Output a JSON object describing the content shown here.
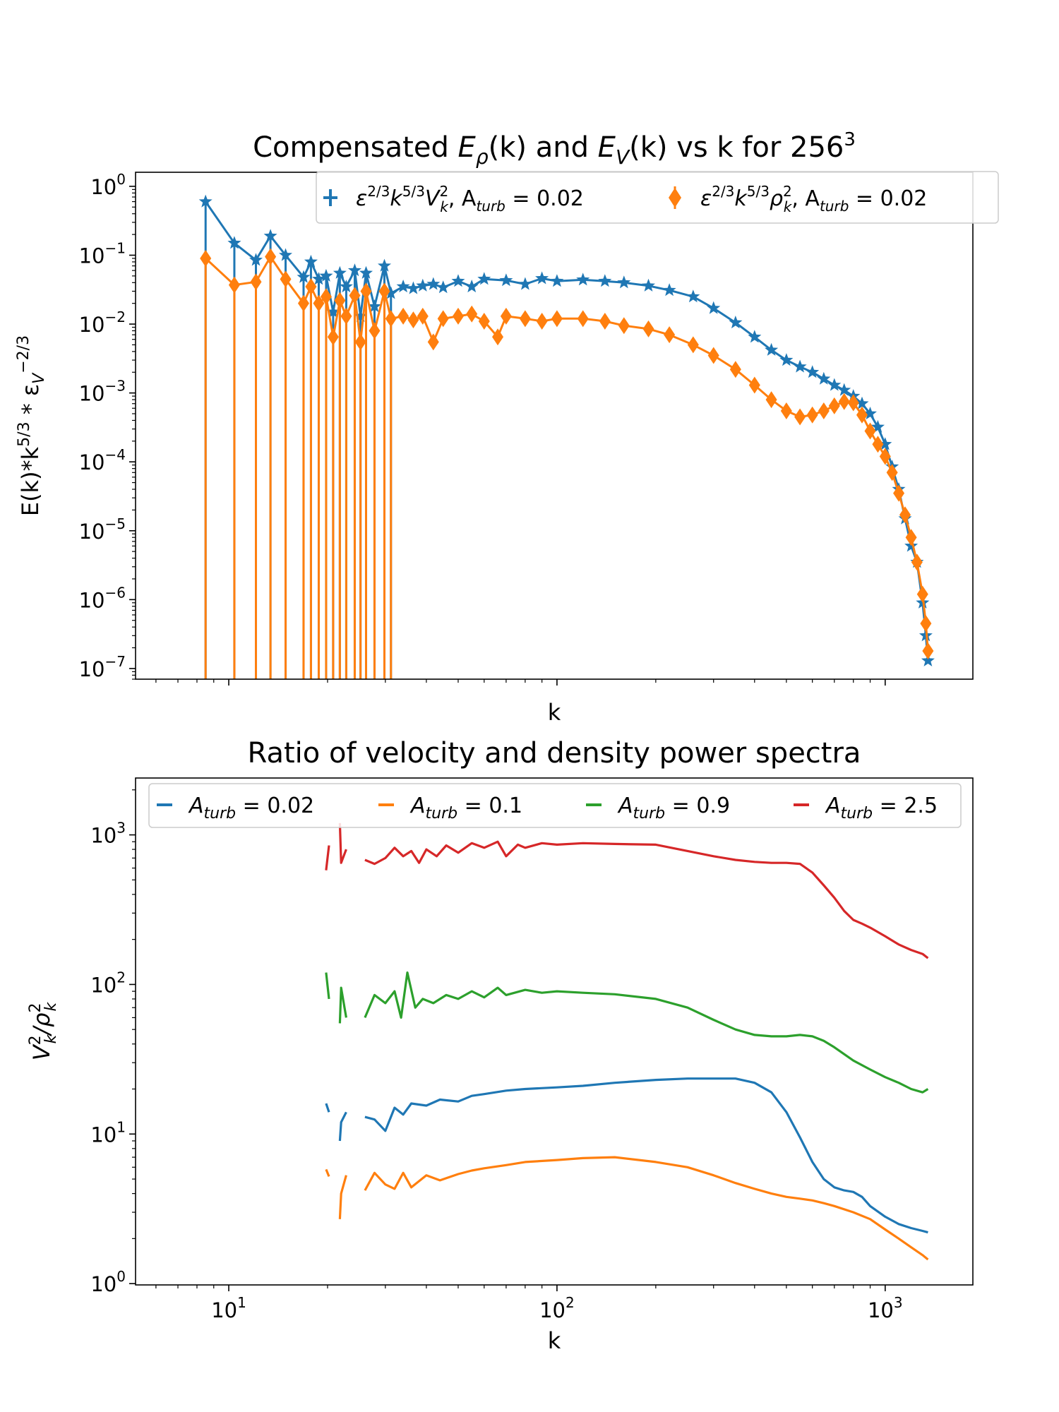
{
  "colors": {
    "blue": "#1f77b4",
    "orange": "#ff7f0e",
    "green": "#2ca02c",
    "red": "#d62728",
    "frame": "#000000"
  },
  "chart_data": [
    {
      "type": "line",
      "title_parts": [
        "Compensated ",
        "E",
        "ρ",
        "(k) and ",
        "E",
        "V",
        "(k) vs k for 256",
        "3"
      ],
      "xlabel": "k",
      "ylabel_parts": [
        "E(k)*k",
        "5/3",
        " * ε",
        "V",
        "−2/3"
      ],
      "xscale": "log",
      "yscale": "log",
      "xlim": [
        5.2,
        1850
      ],
      "ylim": [
        7e-08,
        1.6
      ],
      "x_tick_labels_shown": false,
      "yticks": [
        {
          "base": "10",
          "exp": "0"
        },
        {
          "base": "10",
          "exp": "−1"
        },
        {
          "base": "10",
          "exp": "−2"
        },
        {
          "base": "10",
          "exp": "−3"
        },
        {
          "base": "10",
          "exp": "−4"
        },
        {
          "base": "10",
          "exp": "−5"
        },
        {
          "base": "10",
          "exp": "−6"
        },
        {
          "base": "10",
          "exp": "−7"
        }
      ],
      "ytick_values": [
        1,
        0.1,
        0.01,
        0.001,
        0.0001,
        1e-05,
        1e-06,
        1e-07
      ],
      "legend": [
        {
          "parts": [
            "ε",
            "2/3",
            "k",
            "5/3",
            "V",
            "2",
            "k",
            ", A",
            "turb",
            " = 0.02"
          ],
          "marker": "plus",
          "color": "blue"
        },
        {
          "parts": [
            "ε",
            "2/3",
            "k",
            "5/3",
            "ρ",
            "2",
            "k",
            ", A",
            "turb",
            " = 0.02"
          ],
          "marker": "diamond",
          "color": "orange"
        }
      ],
      "series": [
        {
          "marker": "star",
          "color": "blue",
          "x": [
            8.5,
            10.4,
            12.1,
            13.4,
            14.9,
            16.9,
            17.8,
            18.8,
            19.8,
            20.8,
            21.8,
            22.8,
            24.2,
            25.2,
            26.2,
            27.8,
            29.8,
            31.2,
            34.0,
            36.5,
            39.0,
            42.0,
            45.0,
            50.0,
            55.0,
            60.0,
            70.0,
            80.0,
            90.0,
            100.0,
            120.0,
            140.0,
            160.0,
            190.0,
            220.0,
            260.0,
            300.0,
            350.0,
            400.0,
            450.0,
            500.0,
            550.0,
            600.0,
            650.0,
            700.0,
            750.0,
            800.0,
            850.0,
            900.0,
            950.0,
            1000.0,
            1050.0,
            1100.0,
            1150.0,
            1200.0,
            1250.0,
            1300.0,
            1330.0,
            1350.0
          ],
          "y": [
            0.6,
            0.15,
            0.085,
            0.19,
            0.1,
            0.048,
            0.08,
            0.045,
            0.05,
            0.015,
            0.055,
            0.035,
            0.06,
            0.013,
            0.055,
            0.018,
            0.07,
            0.028,
            0.035,
            0.033,
            0.036,
            0.038,
            0.034,
            0.042,
            0.035,
            0.045,
            0.043,
            0.038,
            0.046,
            0.042,
            0.044,
            0.042,
            0.04,
            0.036,
            0.031,
            0.025,
            0.017,
            0.0105,
            0.0065,
            0.0042,
            0.003,
            0.0024,
            0.002,
            0.0016,
            0.0013,
            0.0011,
            0.0009,
            0.0007,
            0.0005,
            0.00032,
            0.00018,
            8.5e-05,
            4e-05,
            1.5e-05,
            6e-06,
            3.5e-06,
            9e-07,
            3e-07,
            1.3e-07
          ]
        },
        {
          "marker": "diamond",
          "color": "orange",
          "x": [
            8.5,
            10.4,
            12.1,
            13.4,
            14.9,
            16.9,
            17.8,
            18.8,
            19.8,
            20.8,
            21.8,
            22.8,
            24.2,
            25.2,
            26.2,
            27.8,
            29.8,
            31.2,
            34.0,
            36.5,
            39.0,
            42.0,
            45.0,
            50.0,
            55.0,
            60.0,
            66.0,
            70.0,
            80.0,
            90.0,
            100.0,
            120.0,
            140.0,
            160.0,
            190.0,
            220.0,
            260.0,
            300.0,
            350.0,
            400.0,
            450.0,
            500.0,
            550.0,
            600.0,
            650.0,
            700.0,
            750.0,
            800.0,
            850.0,
            900.0,
            950.0,
            1000.0,
            1050.0,
            1100.0,
            1150.0,
            1200.0,
            1250.0,
            1300.0,
            1330.0,
            1350.0
          ],
          "y": [
            0.09,
            0.037,
            0.041,
            0.095,
            0.045,
            0.02,
            0.035,
            0.02,
            0.025,
            0.0065,
            0.022,
            0.013,
            0.026,
            0.0055,
            0.03,
            0.008,
            0.03,
            0.012,
            0.013,
            0.0115,
            0.013,
            0.0055,
            0.012,
            0.013,
            0.014,
            0.011,
            0.0065,
            0.013,
            0.012,
            0.011,
            0.012,
            0.012,
            0.011,
            0.0095,
            0.0085,
            0.007,
            0.005,
            0.0035,
            0.0022,
            0.0013,
            0.0008,
            0.00055,
            0.00045,
            0.00048,
            0.00055,
            0.00065,
            0.00075,
            0.00072,
            0.00048,
            0.00028,
            0.00018,
            0.00012,
            7e-05,
            3.5e-05,
            1.7e-05,
            8e-06,
            3.5e-06,
            1.2e-06,
            4.5e-07,
            1.8e-07
          ]
        }
      ]
    },
    {
      "type": "line",
      "title": "Ratio of velocity and density power spectra",
      "xlabel": "k",
      "ylabel_parts": [
        "V",
        "2",
        "k",
        "/ρ",
        "2",
        "k"
      ],
      "xscale": "log",
      "yscale": "log",
      "xlim": [
        5.2,
        1850
      ],
      "ylim": [
        0.98,
        2400
      ],
      "xticks": [
        {
          "base": "10",
          "exp": "1"
        },
        {
          "base": "10",
          "exp": "2"
        },
        {
          "base": "10",
          "exp": "3"
        }
      ],
      "xtick_values": [
        10,
        100,
        1000
      ],
      "yticks": [
        {
          "base": "10",
          "exp": "0"
        },
        {
          "base": "10",
          "exp": "1"
        },
        {
          "base": "10",
          "exp": "2"
        },
        {
          "base": "10",
          "exp": "3"
        }
      ],
      "ytick_values": [
        1,
        10,
        100,
        1000
      ],
      "legend": [
        {
          "parts": [
            "A",
            "turb",
            " = 0.02"
          ],
          "color": "blue"
        },
        {
          "parts": [
            "A",
            "turb",
            " = 0.1"
          ],
          "color": "orange"
        },
        {
          "parts": [
            "A",
            "turb",
            " = 0.9"
          ],
          "color": "green"
        },
        {
          "parts": [
            "A",
            "turb",
            " = 2.5"
          ],
          "color": "red"
        }
      ],
      "series": [
        {
          "color": "red",
          "x": [
            19.8,
            20.2,
            20.8,
            21.8,
            22.0,
            22.8,
            24.8,
            26.0,
            27.8,
            30.0,
            32.0,
            34.0,
            36.0,
            38.0,
            40.0,
            43.0,
            46.0,
            50.0,
            55.0,
            60.0,
            66.0,
            70.0,
            76.0,
            80.0,
            90.0,
            100.0,
            120.0,
            150.0,
            200.0,
            250.0,
            300.0,
            350.0,
            400.0,
            450.0,
            500.0,
            550.0,
            600.0,
            650.0,
            700.0,
            750.0,
            800.0,
            850.0,
            900.0,
            1000.0,
            1100.0,
            1200.0,
            1300.0,
            1350.0
          ],
          "y": [
            580,
            850,
            null,
            1200,
            650,
            800,
            null,
            680,
            640,
            700,
            820,
            720,
            780,
            650,
            800,
            720,
            850,
            760,
            880,
            820,
            900,
            720,
            860,
            820,
            880,
            860,
            880,
            870,
            860,
            780,
            720,
            680,
            660,
            650,
            650,
            640,
            560,
            460,
            380,
            310,
            270,
            255,
            240,
            210,
            185,
            170,
            160,
            150
          ]
        },
        {
          "color": "green",
          "x": [
            19.8,
            20.2,
            20.8,
            21.8,
            22.0,
            22.8,
            24.8,
            26.0,
            27.8,
            30.0,
            32.0,
            33.5,
            35.0,
            37.0,
            39.0,
            42.0,
            46.0,
            50.0,
            55.0,
            60.0,
            66.0,
            70.0,
            80.0,
            90.0,
            100.0,
            120.0,
            150.0,
            200.0,
            250.0,
            300.0,
            350.0,
            400.0,
            450.0,
            500.0,
            550.0,
            600.0,
            650.0,
            700.0,
            800.0,
            900.0,
            1000.0,
            1100.0,
            1200.0,
            1300.0,
            1350.0
          ],
          "y": [
            120,
            80,
            null,
            55,
            95,
            60,
            null,
            60,
            85,
            75,
            90,
            60,
            120,
            70,
            80,
            75,
            85,
            80,
            90,
            82,
            95,
            85,
            92,
            88,
            90,
            88,
            86,
            80,
            70,
            58,
            50,
            46,
            45,
            45,
            46,
            45,
            42,
            38,
            31,
            27,
            24,
            22,
            20,
            19,
            20
          ]
        },
        {
          "color": "blue",
          "x": [
            19.8,
            20.2,
            20.8,
            21.8,
            22.0,
            22.8,
            24.8,
            26.0,
            27.8,
            30.0,
            32.0,
            34.0,
            36.0,
            40.0,
            44.0,
            50.0,
            55.0,
            60.0,
            70.0,
            80.0,
            100.0,
            120.0,
            150.0,
            200.0,
            250.0,
            300.0,
            350.0,
            400.0,
            450.0,
            500.0,
            550.0,
            600.0,
            650.0,
            700.0,
            750.0,
            800.0,
            850.0,
            900.0,
            1000.0,
            1100.0,
            1200.0,
            1300.0,
            1350.0
          ],
          "y": [
            16,
            14,
            null,
            9,
            12,
            14,
            null,
            13,
            12.5,
            10.5,
            15,
            13.5,
            16,
            15.5,
            17,
            16.5,
            18,
            18.5,
            19.5,
            20,
            20.5,
            21,
            22,
            23,
            23.5,
            23.5,
            23.5,
            22,
            19,
            14,
            9.5,
            6.5,
            5,
            4.4,
            4.2,
            4.1,
            3.8,
            3.3,
            2.8,
            2.5,
            2.35,
            2.25,
            2.2
          ]
        },
        {
          "color": "orange",
          "x": [
            19.8,
            20.2,
            20.8,
            21.8,
            22.0,
            22.8,
            24.8,
            26.0,
            27.8,
            30.0,
            32.0,
            34.0,
            36.0,
            40.0,
            44.0,
            50.0,
            55.0,
            60.0,
            70.0,
            80.0,
            100.0,
            120.0,
            150.0,
            200.0,
            250.0,
            300.0,
            350.0,
            400.0,
            450.0,
            500.0,
            550.0,
            600.0,
            650.0,
            700.0,
            800.0,
            900.0,
            1000.0,
            1100.0,
            1200.0,
            1300.0,
            1350.0
          ],
          "y": [
            5.8,
            5.2,
            null,
            2.7,
            4.0,
            5.3,
            null,
            4.2,
            5.5,
            4.6,
            4.3,
            5.5,
            4.4,
            5.3,
            4.9,
            5.4,
            5.7,
            5.9,
            6.2,
            6.5,
            6.7,
            6.9,
            7.0,
            6.5,
            6.0,
            5.3,
            4.7,
            4.3,
            4.0,
            3.8,
            3.7,
            3.6,
            3.45,
            3.3,
            3.0,
            2.7,
            2.3,
            2.0,
            1.75,
            1.55,
            1.45
          ]
        }
      ]
    }
  ]
}
